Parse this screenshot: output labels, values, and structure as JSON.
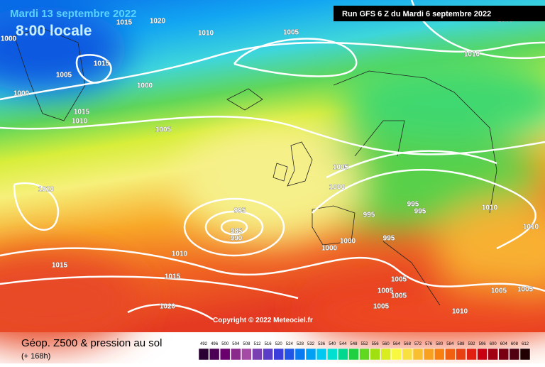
{
  "header": {
    "date": "Mardi 13 septembre 2022",
    "time": "8:00 locale",
    "run": "Run GFS 6 Z du Mardi 6 septembre 2022"
  },
  "copyright": "Copyright © 2022 Meteociel.fr",
  "footer": {
    "title": "Géop. Z500 & pression au sol",
    "subtitle": "(+ 168h)"
  },
  "legend": {
    "values": [
      492,
      496,
      500,
      504,
      508,
      512,
      516,
      520,
      524,
      528,
      532,
      536,
      540,
      544,
      548,
      552,
      556,
      560,
      564,
      568,
      572,
      576,
      580,
      584,
      588,
      592,
      596,
      600,
      604,
      608,
      612
    ],
    "colors": [
      "#2a0033",
      "#4b0055",
      "#6a006e",
      "#8a2a8a",
      "#a54aa5",
      "#7a3fb0",
      "#5a3ec8",
      "#3b3edb",
      "#2055e6",
      "#0a7af0",
      "#00a0f5",
      "#00c8f0",
      "#00e0d0",
      "#00d890",
      "#20d040",
      "#60d820",
      "#a0e010",
      "#d8ec20",
      "#f8f840",
      "#f8e040",
      "#f8c030",
      "#f8a020",
      "#f88010",
      "#f06010",
      "#e84010",
      "#e02010",
      "#c80010",
      "#a00010",
      "#780010",
      "#500010",
      "#200000"
    ]
  },
  "isobar_labels": [
    "1015",
    "1020",
    "1010",
    "1005",
    "1000",
    "1015",
    "1005",
    "1000",
    "1000",
    "1015",
    "1010",
    "1005",
    "1010",
    "1005",
    "1000",
    "1020",
    "995",
    "995",
    "995",
    "995",
    "1010",
    "1010",
    "985",
    "990",
    "1000",
    "995",
    "1000",
    "1015",
    "1010",
    "1015",
    "1005",
    "1005",
    "1005",
    "1005",
    "1005",
    "1005",
    "1020",
    "1010",
    "1005"
  ]
}
